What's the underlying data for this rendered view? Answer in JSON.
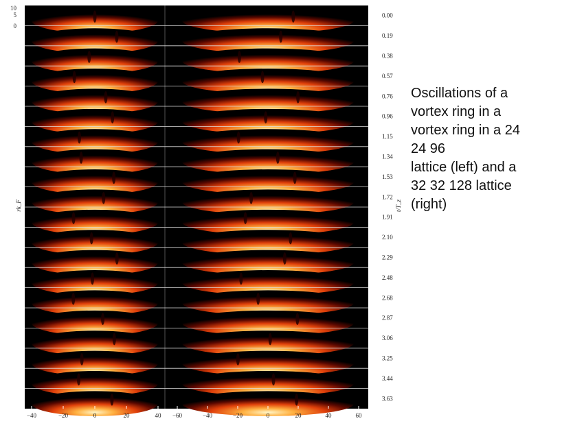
{
  "figure": {
    "y_label": "rk_F",
    "y_ticks": [
      "10",
      "5",
      "0"
    ],
    "t_label": "t/T_z",
    "times": [
      "0.00",
      "0.19",
      "0.38",
      "0.57",
      "0.76",
      "0.96",
      "1.15",
      "1.34",
      "1.53",
      "1.72",
      "1.91",
      "2.10",
      "2.29",
      "2.48",
      "2.68",
      "2.87",
      "3.06",
      "3.25",
      "3.44",
      "3.63"
    ],
    "left_x_ticks": [
      {
        "value": -40,
        "label": "−40"
      },
      {
        "value": -20,
        "label": "−20"
      },
      0,
      20,
      40
    ],
    "right_x_ticks": [
      {
        "value": -60,
        "label": "−60"
      },
      {
        "value": -40,
        "label": "−40"
      },
      {
        "value": -20,
        "label": "−20"
      },
      0,
      20,
      40,
      60
    ]
  },
  "caption": [
    "Oscillations of a",
    "vortex ring in a",
    "vortex ring in a 24",
    "24  96",
    "lattice (left) and a",
    "32  32  128 lattice",
    "(right)"
  ]
}
